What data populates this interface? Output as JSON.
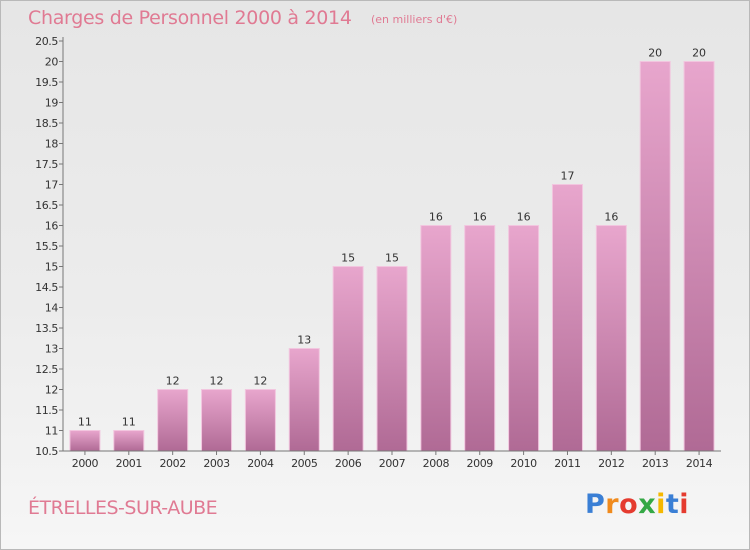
{
  "header": {
    "title": "Charges de Personnel 2000 à 2014",
    "subtitle": "(en milliers d'€)"
  },
  "footer": {
    "commune": "ÉTRELLES-SUR-AUBE",
    "logo_letters": [
      {
        "char": "P",
        "color": "#3a7fd5"
      },
      {
        "char": "r",
        "color": "#f08a1c"
      },
      {
        "char": "o",
        "color": "#e53b2f"
      },
      {
        "char": "x",
        "color": "#34a845"
      },
      {
        "char": "i",
        "color": "#f5b800"
      },
      {
        "char": "t",
        "color": "#3a7fd5"
      },
      {
        "char": "i",
        "color": "#e53b2f"
      }
    ]
  },
  "chart_data": {
    "type": "bar",
    "title": "Charges de Personnel 2000 à 2014",
    "subtitle": "(en milliers d'€)",
    "categories": [
      "2000",
      "2001",
      "2002",
      "2003",
      "2004",
      "2005",
      "2006",
      "2007",
      "2008",
      "2009",
      "2010",
      "2011",
      "2012",
      "2013",
      "2014"
    ],
    "values": [
      11,
      11,
      12,
      12,
      12,
      13,
      15,
      15,
      16,
      16,
      16,
      17,
      16,
      20,
      20
    ],
    "ylim": [
      10.5,
      20.5
    ],
    "yticks": [
      "10.5",
      "11",
      "11.5",
      "12",
      "12.5",
      "13",
      "13.5",
      "14",
      "14.5",
      "15",
      "15.5",
      "16",
      "16.5",
      "17",
      "17.5",
      "18",
      "18.5",
      "19",
      "19.5",
      "20",
      "20.5"
    ],
    "grid": false,
    "bar_color_top": "#e8a6cd",
    "bar_color_bottom": "#b06a95"
  }
}
